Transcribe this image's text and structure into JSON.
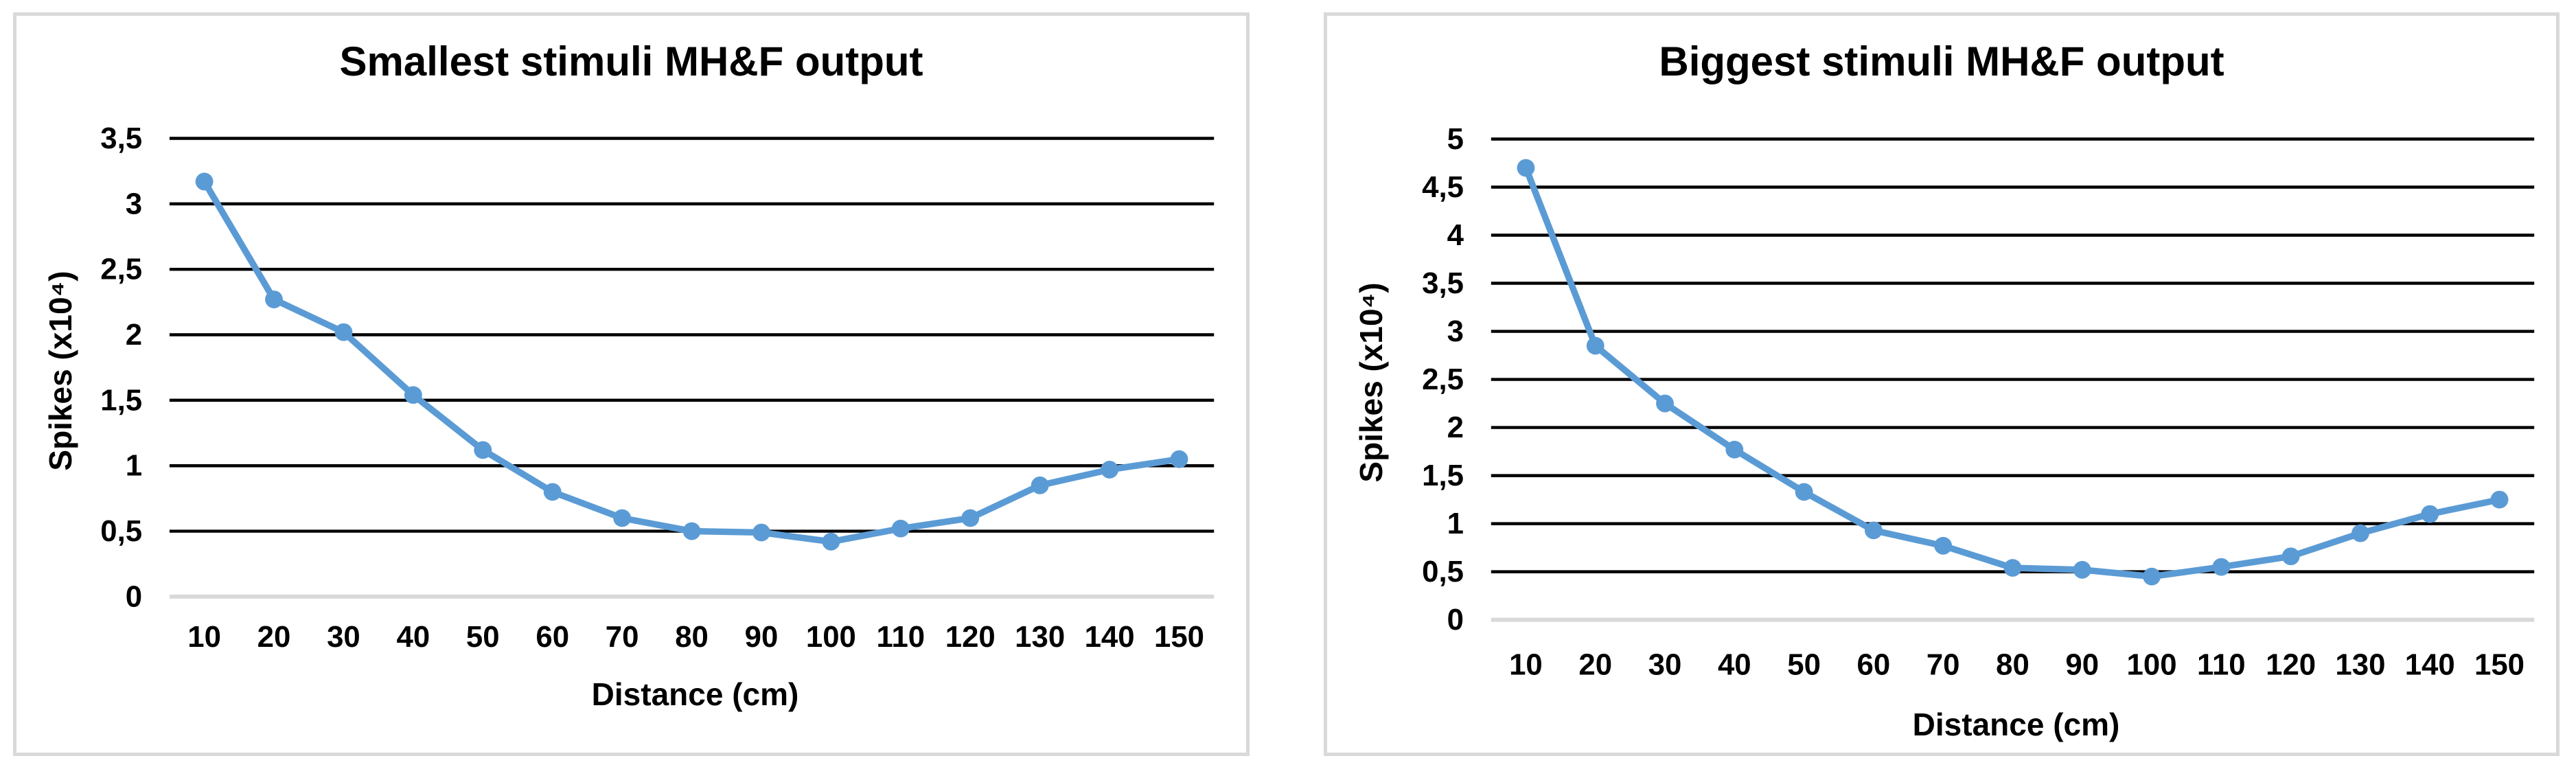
{
  "window": {
    "background": "#ffffff",
    "panel_background": "#ffffff",
    "panel_border_color": "#d9d9d9"
  },
  "chart_data": [
    {
      "type": "line",
      "title": "Smallest stimuli MH&F output",
      "xlabel": "Distance (cm)",
      "ylabel": "Spikes (x10⁴)",
      "categories": [
        10,
        20,
        30,
        40,
        50,
        60,
        70,
        80,
        90,
        100,
        110,
        120,
        130,
        140,
        150
      ],
      "values": [
        3.17,
        2.27,
        2.02,
        1.54,
        1.12,
        0.8,
        0.6,
        0.5,
        0.49,
        0.42,
        0.52,
        0.6,
        0.85,
        0.97,
        1.05
      ],
      "ylim": [
        0,
        3.5
      ],
      "ytick_step": 0.5,
      "decimal_separator": ",",
      "grid": true,
      "legend": "none",
      "line_color": "#5b9bd5",
      "marker": "circle",
      "gridline_color": "#000000",
      "zero_gridline_color": "#d9d9d9",
      "text_color": "#000000"
    },
    {
      "type": "line",
      "title": "Biggest stimuli MH&F output",
      "xlabel": "Distance (cm)",
      "ylabel": "Spikes (x10⁴)",
      "categories": [
        10,
        20,
        30,
        40,
        50,
        60,
        70,
        80,
        90,
        100,
        110,
        120,
        130,
        140,
        150
      ],
      "values": [
        4.7,
        2.85,
        2.25,
        1.77,
        1.33,
        0.93,
        0.77,
        0.54,
        0.52,
        0.45,
        0.55,
        0.66,
        0.9,
        1.1,
        1.25
      ],
      "ylim": [
        0,
        5
      ],
      "ytick_step": 0.5,
      "decimal_separator": ",",
      "grid": true,
      "legend": "none",
      "line_color": "#5b9bd5",
      "marker": "circle",
      "gridline_color": "#000000",
      "zero_gridline_color": "#d9d9d9",
      "text_color": "#000000"
    }
  ]
}
